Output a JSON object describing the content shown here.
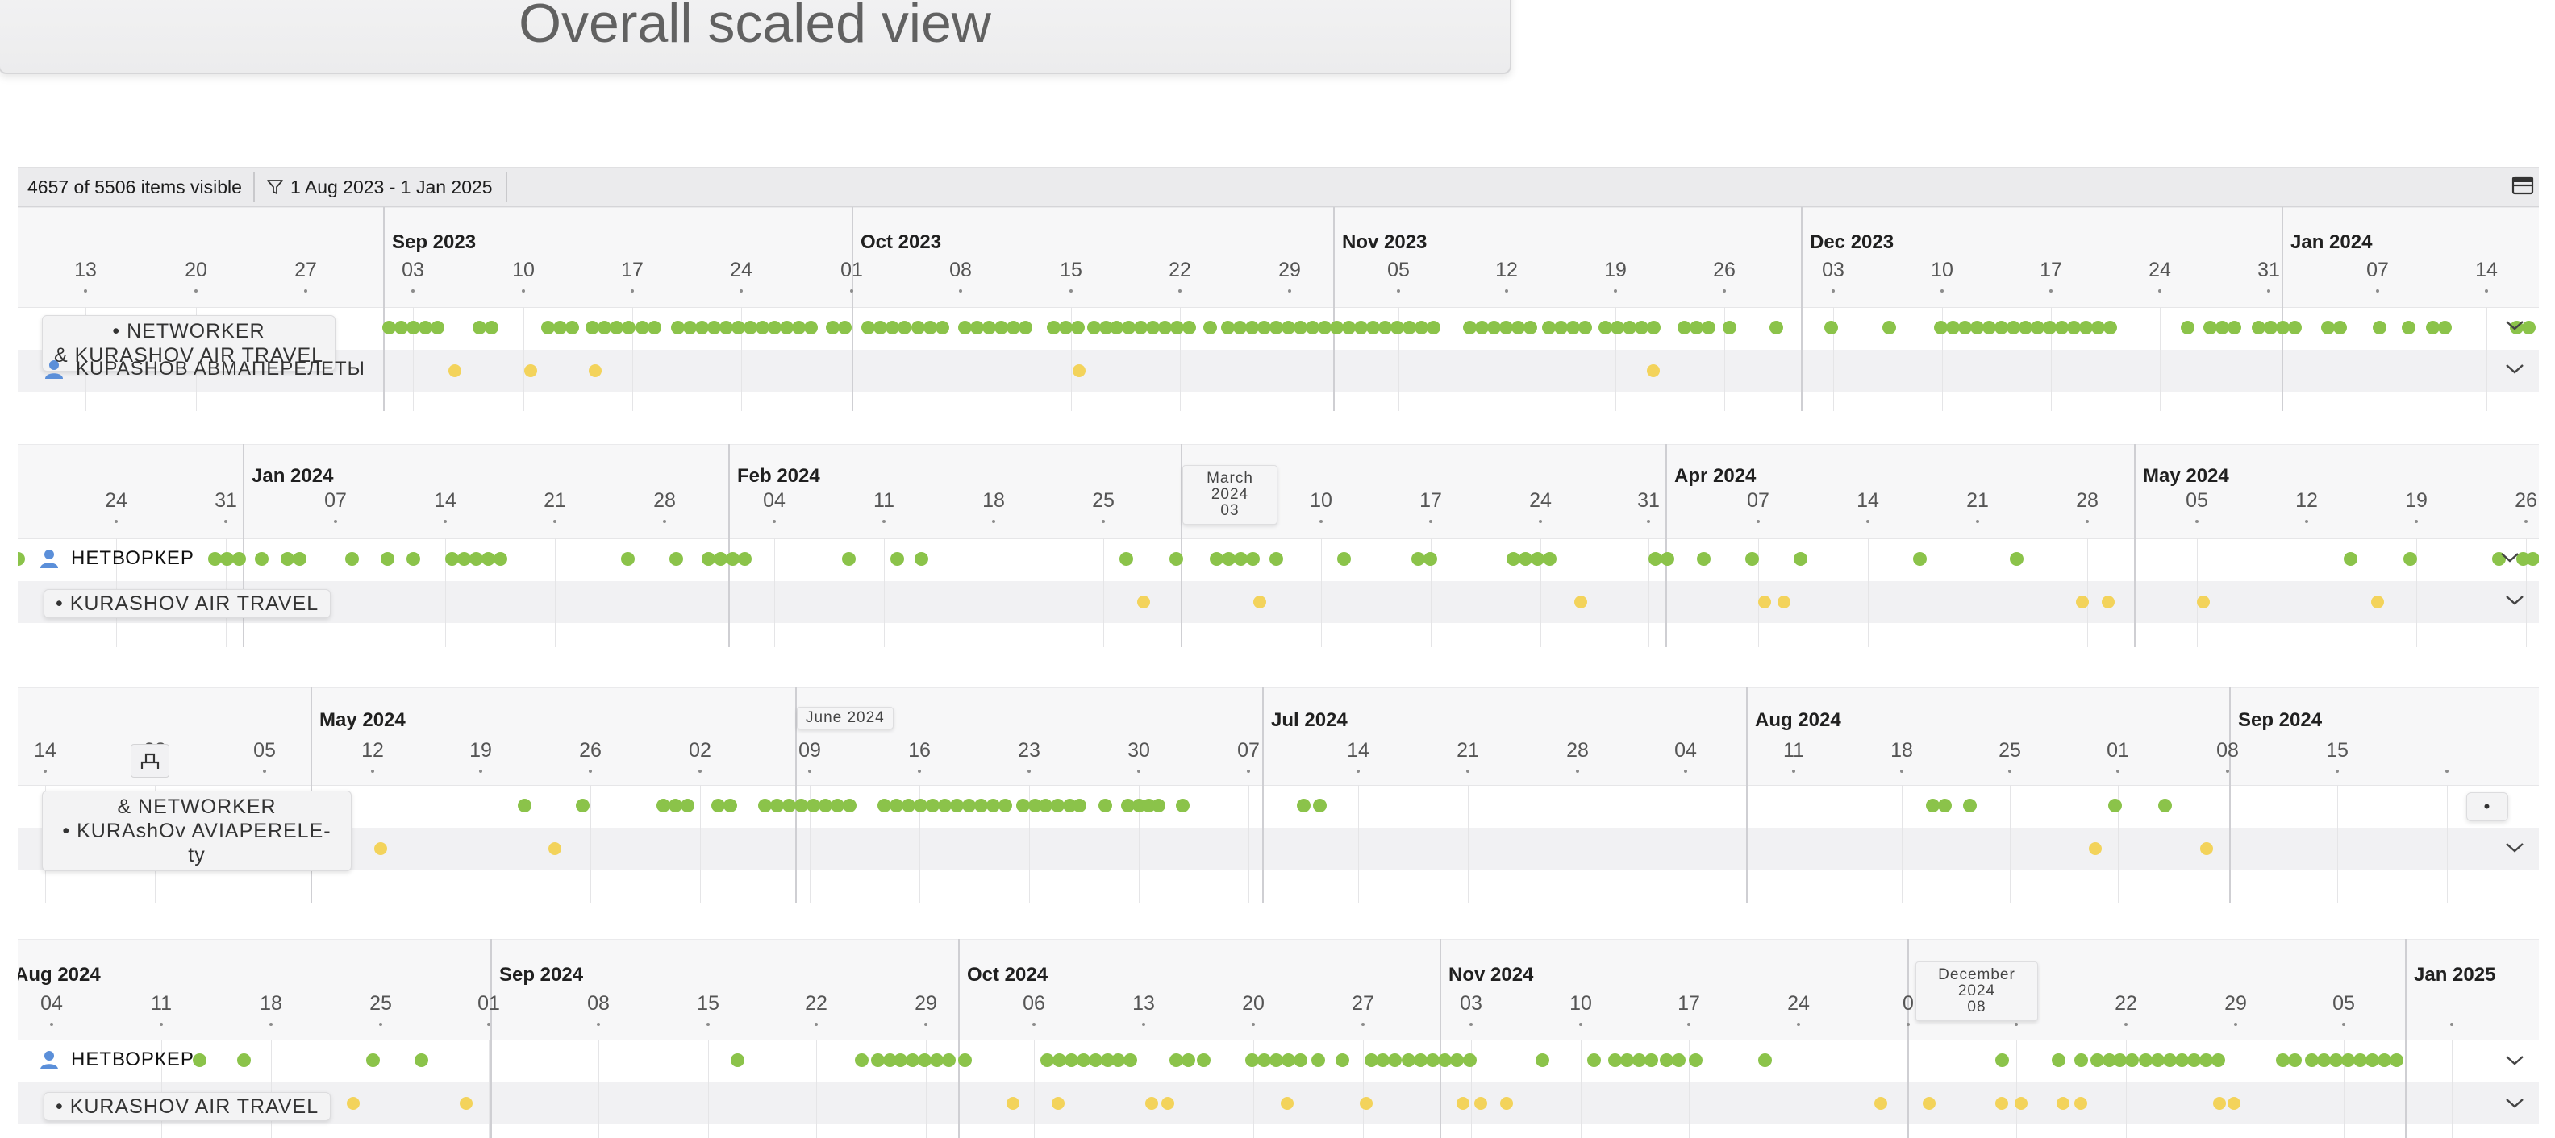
{
  "title": "Overall scaled view",
  "toolbar": {
    "items_visible": "4657 of 5506 items visible",
    "date_filter": "1 Aug 2023 - 1 Jan 2025"
  },
  "icons": {
    "filter": "funnel-icon",
    "layout": "layout-toggle-icon",
    "person": "person-icon",
    "expand": "chevron-down-icon",
    "split": "split-icon"
  },
  "colors": {
    "event_green": "#8bc34a",
    "event_yellow": "#f3d35b",
    "person_blue": "#5b8fd9"
  },
  "sections": [
    {
      "months": [
        "Sep 2023",
        "Oct 2023",
        "Nov 2023",
        "Dec 2023",
        "Jan 2024"
      ],
      "days": [
        "13",
        "20",
        "27",
        "03",
        "10",
        "17",
        "24",
        "01",
        "08",
        "15",
        "22",
        "29",
        "05",
        "12",
        "19",
        "26",
        "03",
        "10",
        "17",
        "24",
        "31",
        "07",
        "14"
      ],
      "row_labels": [
        "• NETWORKER",
        "& KURASHOV AIR TRAVEL",
        "KUPASHOB ABMAПЕРЕЛЕТЫ"
      ]
    },
    {
      "months": [
        "Jan 2024",
        "Feb 2024",
        "Apr 2024",
        "May 2024"
      ],
      "days": [
        "24",
        "31",
        "07",
        "14",
        "21",
        "28",
        "04",
        "11",
        "18",
        "25",
        "10",
        "17",
        "24",
        "31",
        "07",
        "14",
        "21",
        "28",
        "05",
        "12",
        "19",
        "26"
      ],
      "marker_popup": "March\n2024\n03",
      "row_labels": [
        "НЕТВОРКЕР",
        "• KURASHOV AIR TRAVEL"
      ]
    },
    {
      "months": [
        "May 2024",
        "Jul 2024",
        "Aug 2024",
        "Sep 2024"
      ],
      "days": [
        "14",
        "28",
        "05",
        "12",
        "19",
        "26",
        "02",
        "09",
        "16",
        "23",
        "30",
        "07",
        "14",
        "21",
        "28",
        "04",
        "11",
        "18",
        "25",
        "01",
        "08",
        "15"
      ],
      "marker_popup": "June 2024",
      "row_labels": [
        "& NETWORKER",
        "• KURAshOv AVIAPERELE-",
        "ty"
      ],
      "tooltip_small": "•"
    },
    {
      "months": [
        "Aug 2024",
        "Sep 2024",
        "Oct 2024",
        "Nov 2024",
        "Jan 2025"
      ],
      "days": [
        "04",
        "11",
        "18",
        "25",
        "01",
        "08",
        "15",
        "22",
        "29",
        "06",
        "13",
        "20",
        "27",
        "03",
        "10",
        "17",
        "24",
        "0",
        "15",
        "22",
        "29",
        "05"
      ],
      "marker_popup": "December\n2024\n08",
      "row_labels": [
        "НЕТВОРКЕР",
        "• KURASHOV AIR TRAVEL"
      ]
    }
  ]
}
